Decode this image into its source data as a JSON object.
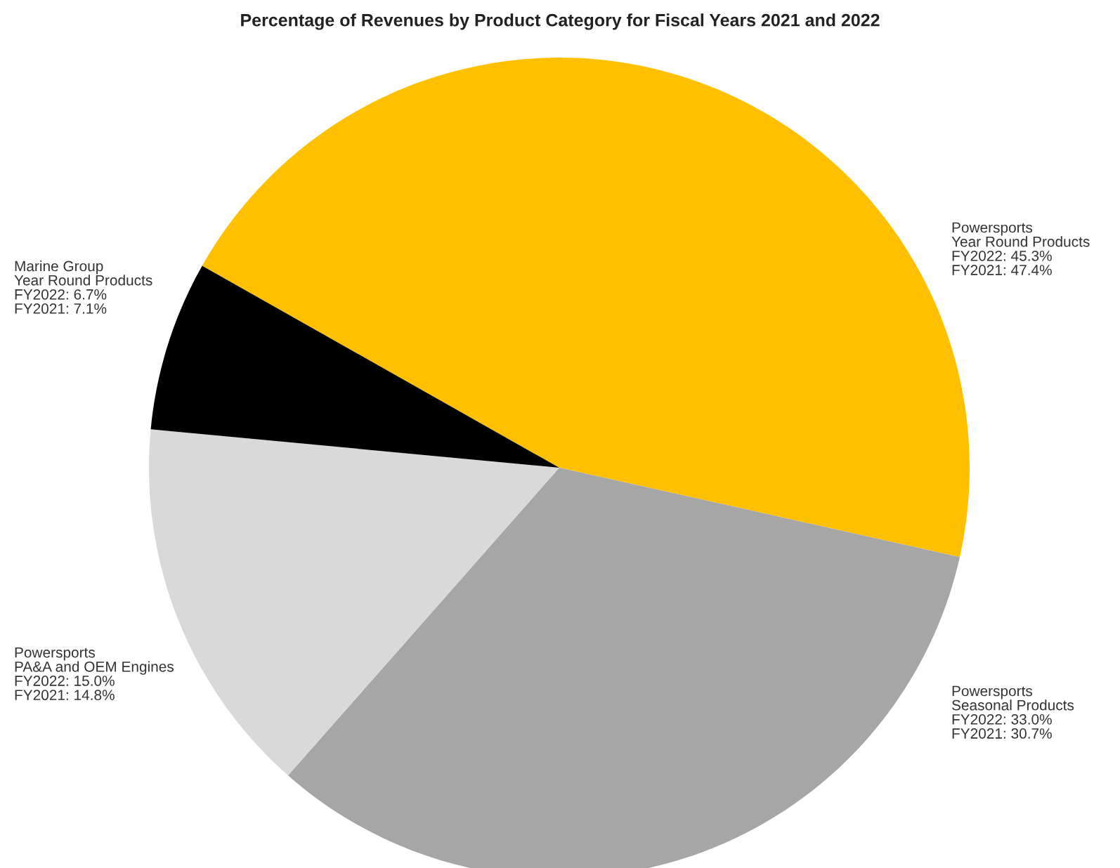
{
  "chart_data": {
    "type": "pie",
    "title": "Percentage of Revenues by Product Category for Fiscal Years 2021 and 2022",
    "categories": [
      "Powersports\nYear Round Products",
      "Powersports\nSeasonal Products",
      "Powersports\nPA&A and OEM Engines",
      "Marine Group\nYear Round Products"
    ],
    "values": [
      45.3,
      33.0,
      15.0,
      6.7
    ],
    "value_labels": [
      "FY2022: 45.3%\nFY2021: 47.4%",
      "FY2022: 33.0%\nFY2021: 30.7%",
      "FY2022: 15.0%\nFY2021: 14.8%",
      "FY2022: 6.7%\nFY2021: 7.1%"
    ],
    "colors": [
      "#ffc000",
      "#a6a6a6",
      "#d9d9d9",
      "#000000"
    ]
  }
}
